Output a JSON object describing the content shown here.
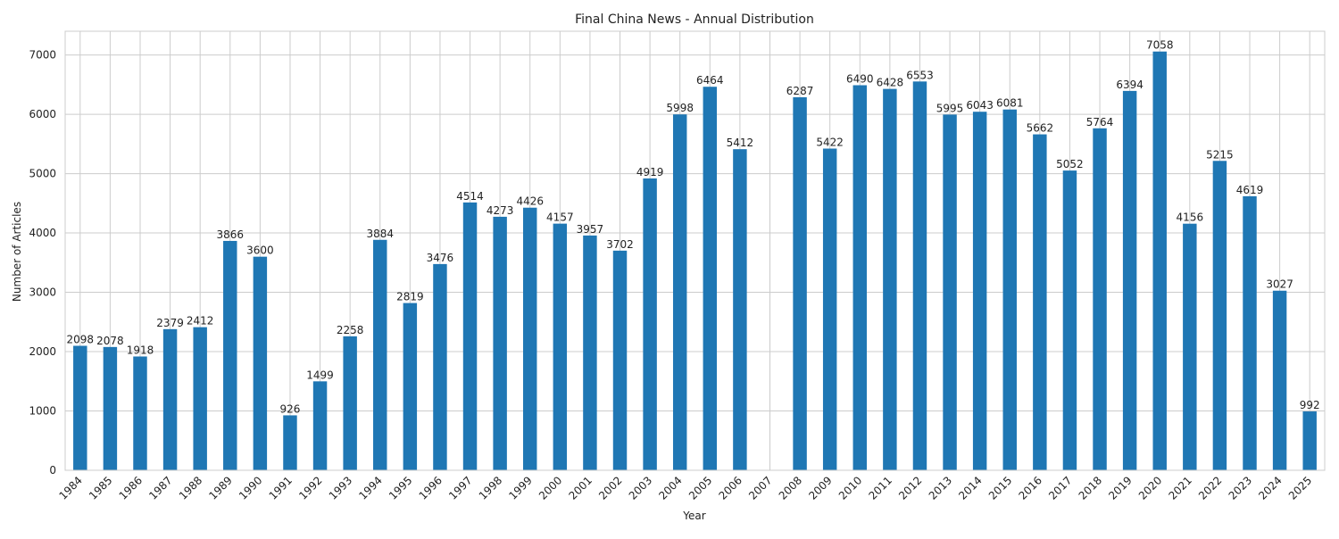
{
  "chart_data": {
    "type": "bar",
    "title": "Final China News - Annual Distribution",
    "xlabel": "Year",
    "ylabel": "Number of Articles",
    "ylim": [
      0,
      7400
    ],
    "yticks": [
      0,
      1000,
      2000,
      3000,
      4000,
      5000,
      6000,
      7000
    ],
    "grid": true,
    "legend": "none",
    "bar_color": "#1f77b4",
    "categories": [
      "1984",
      "1985",
      "1986",
      "1987",
      "1988",
      "1989",
      "1990",
      "1991",
      "1992",
      "1993",
      "1994",
      "1995",
      "1996",
      "1997",
      "1998",
      "1999",
      "2000",
      "2001",
      "2002",
      "2003",
      "2004",
      "2005",
      "2006",
      "2007",
      "2008",
      "2009",
      "2010",
      "2011",
      "2012",
      "2013",
      "2014",
      "2015",
      "2016",
      "2017",
      "2018",
      "2019",
      "2020",
      "2021",
      "2022",
      "2023",
      "2024",
      "2025"
    ],
    "values": [
      2098,
      2078,
      1918,
      2379,
      2412,
      3866,
      3600,
      926,
      1499,
      2258,
      3884,
      2819,
      3476,
      4514,
      4273,
      4426,
      4157,
      3957,
      3702,
      4919,
      5998,
      6464,
      5412,
      null,
      6287,
      5422,
      6490,
      6428,
      6553,
      5995,
      6043,
      6081,
      5662,
      5052,
      5764,
      6394,
      7058,
      4156,
      5215,
      4619,
      3027,
      992
    ]
  }
}
